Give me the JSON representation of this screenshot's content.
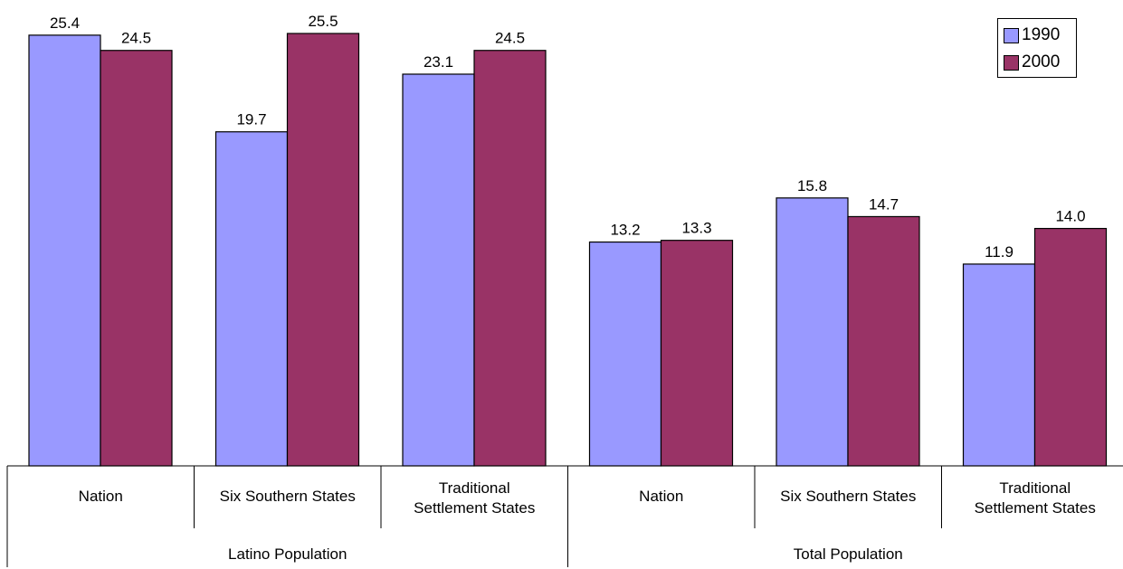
{
  "chart_data": {
    "type": "bar",
    "groups": [
      {
        "label": "Latino Population",
        "categories": [
          "Nation",
          "Six Southern States",
          "Traditional Settlement States"
        ]
      },
      {
        "label": "Total Population",
        "categories": [
          "Nation",
          "Six Southern States",
          "Traditional Settlement States"
        ]
      }
    ],
    "series": [
      {
        "name": "1990",
        "color": "#9999ff",
        "values": [
          25.4,
          19.7,
          23.1,
          13.2,
          15.8,
          11.9
        ]
      },
      {
        "name": "2000",
        "color": "#993366",
        "values": [
          24.5,
          25.5,
          24.5,
          13.3,
          14.7,
          14.0
        ]
      }
    ],
    "ylim": [
      0,
      25.5
    ],
    "grid": false,
    "legend_position": "top-right"
  }
}
